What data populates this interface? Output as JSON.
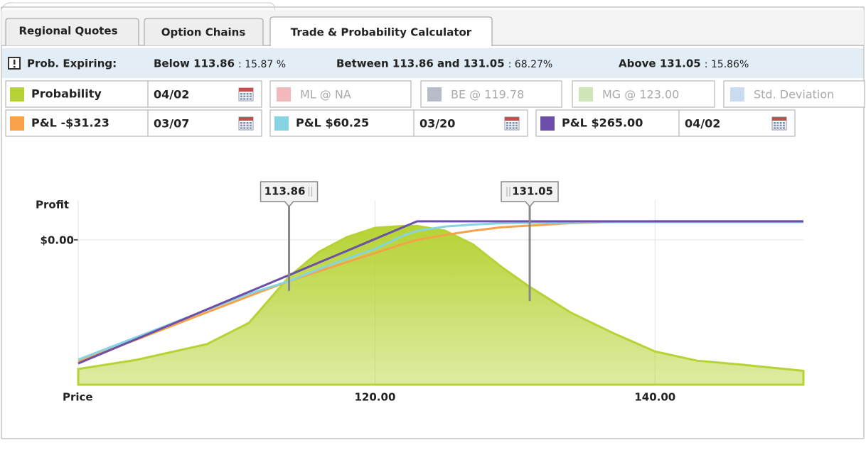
{
  "tabs": [
    "Regional Quotes",
    "Option Chains",
    "Trade & Probability Calculator"
  ],
  "prob_expiring": {
    "label": "Prob. Expiring:",
    "items": [
      {
        "label": "Below 113.86",
        "value": ": 15.87 %"
      },
      {
        "label": "Between 113.86 and 131.05",
        "value": ": 68.27%"
      },
      {
        "label": "Above 131.05",
        "value": ": 15.86%"
      }
    ]
  },
  "indicators": [
    {
      "label": "ML @ NA",
      "color": "#f2b8bb"
    },
    {
      "label": "BE @ 119.78",
      "color": "#b8bcc8"
    },
    {
      "label": "MG @ 123.00",
      "color": "#cfe6b8"
    },
    {
      "label": "Std. Deviation",
      "color": "#c9ddf2"
    }
  ],
  "chart_data": {
    "type": "line",
    "x": [
      98.8,
      103,
      108,
      111,
      113.86,
      116,
      118,
      120,
      122,
      123,
      125,
      127,
      129,
      131.05,
      134,
      137,
      140,
      143,
      146,
      150.6
    ],
    "xlim": [
      98.8,
      150.6
    ],
    "xticks": [
      {
        "value": 120,
        "label": "120.00"
      },
      {
        "value": 140,
        "label": "140.00"
      }
    ],
    "ylim": [
      -2080,
      570
    ],
    "yticks": [
      {
        "value": 0,
        "label": "$0.00"
      }
    ],
    "y2lim": [
      0,
      1
    ],
    "y2ticks": [],
    "xlabel": "Price",
    "ylabel": "Profit",
    "grid": true,
    "series": [
      {
        "name": "Probability",
        "date": "04/02",
        "color": "#b5d334",
        "axis": "y2",
        "values": [
          0.085,
          0.135,
          0.22,
          0.335,
          0.585,
          0.72,
          0.8,
          0.85,
          0.86,
          0.86,
          0.835,
          0.76,
          0.64,
          0.53,
          0.39,
          0.28,
          0.18,
          0.13,
          0.11,
          0.075
        ]
      },
      {
        "name": "P&L  -$31.23",
        "date": "03/07",
        "color": "#f5a24a",
        "values": [
          -1750,
          -1430,
          -1040,
          -810,
          -592,
          -450,
          -320,
          -190,
          -60,
          0,
          70,
          130,
          180,
          204,
          240,
          258,
          265,
          265,
          265,
          265
        ]
      },
      {
        "name": "P&L  $60.25",
        "date": "03/20",
        "color": "#86d4e2",
        "values": [
          -1720,
          -1395,
          -1005,
          -775,
          -592,
          -420,
          -270,
          -130,
          60,
          130,
          190,
          220,
          238,
          245,
          252,
          255,
          255,
          255,
          255,
          255
        ]
      },
      {
        "name": "P&L  $265.00",
        "date": "04/02",
        "color": "#6b4fa8",
        "values": [
          -1775,
          -1421,
          -999,
          -746,
          -506,
          -326,
          -157,
          12,
          181,
          265,
          265,
          265,
          265,
          265,
          265,
          265,
          265,
          265,
          265,
          265
        ]
      }
    ],
    "annotations": [
      {
        "value": 113.86,
        "label": "113.86"
      },
      {
        "value": 131.05,
        "label": "131.05"
      }
    ]
  }
}
